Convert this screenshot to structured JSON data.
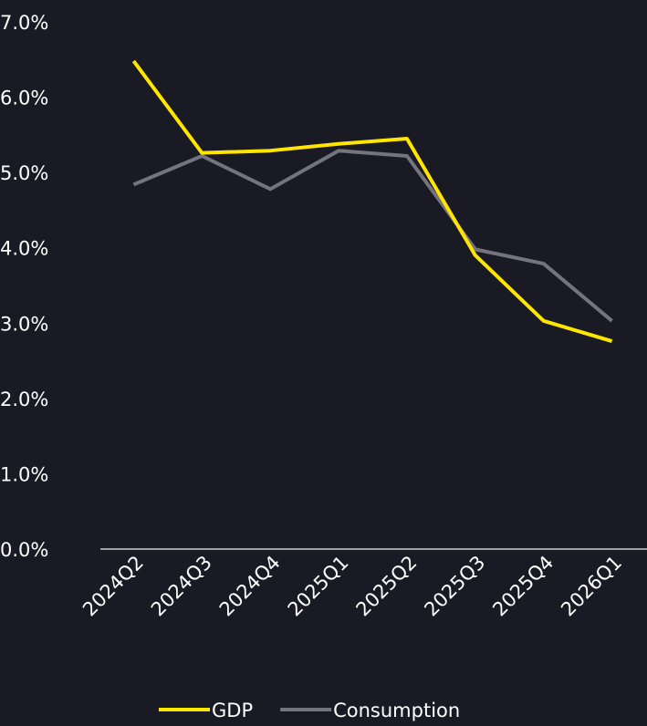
{
  "chart_data": {
    "type": "line",
    "categories": [
      "2024Q2",
      "2024Q3",
      "2024Q4",
      "2025Q1",
      "2025Q2",
      "2025Q3",
      "2025Q4",
      "2026Q1"
    ],
    "series": [
      {
        "name": "GDP",
        "color": "#ffe600",
        "values": [
          6.48,
          5.26,
          5.29,
          5.38,
          5.45,
          3.9,
          3.03,
          2.76
        ]
      },
      {
        "name": "Consumption",
        "color": "#747480",
        "values": [
          4.84,
          5.22,
          4.78,
          5.29,
          5.22,
          3.98,
          3.79,
          3.03
        ]
      }
    ],
    "ylim": [
      0,
      7
    ],
    "yticks": [
      {
        "value": 0,
        "label": "0.0%"
      },
      {
        "value": 1,
        "label": "1.0%"
      },
      {
        "value": 2,
        "label": "2.0%"
      },
      {
        "value": 3,
        "label": "3.0%"
      },
      {
        "value": 4,
        "label": "4.0%"
      },
      {
        "value": 5,
        "label": "5.0%"
      },
      {
        "value": 6,
        "label": "6.0%"
      },
      {
        "value": 7,
        "label": "7.0%"
      }
    ],
    "grid": false,
    "legend": "bottom"
  }
}
